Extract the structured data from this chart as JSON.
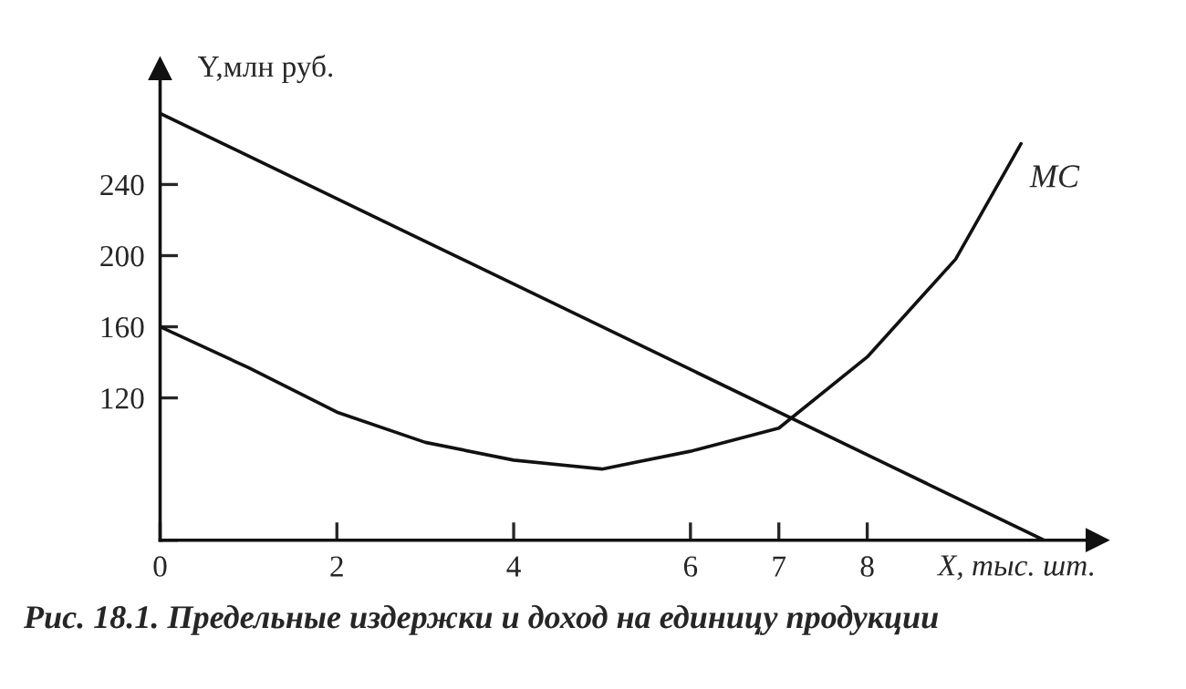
{
  "chart_data": {
    "type": "line",
    "xlabel": "X, тыс. шт.",
    "ylabel": "Y,млн руб.",
    "annotations": [
      "Рис. 18.1. Предельные издержки и доход на единицу продукции"
    ],
    "series": [
      {
        "color": "#111111",
        "x": [
          0,
          10
        ],
        "values": [
          280,
          40
        ]
      },
      {
        "name": "MC",
        "color": "#111111",
        "x": [
          0,
          1,
          2,
          3,
          4,
          5,
          6,
          7,
          8,
          9,
          9.74
        ],
        "values": [
          160,
          137,
          112,
          95,
          85,
          80,
          90,
          103,
          143,
          198,
          263
        ]
      }
    ],
    "xlim": [
      0,
      10.6
    ],
    "ylim": [
      40,
      305
    ],
    "xticks": [
      0,
      2,
      4,
      6,
      7,
      8
    ],
    "yticks": [
      {
        "value": 40,
        "label": null
      },
      120,
      160,
      200,
      240
    ],
    "grid": false,
    "legend": false,
    "marker": "none",
    "line_style": "solid"
  }
}
